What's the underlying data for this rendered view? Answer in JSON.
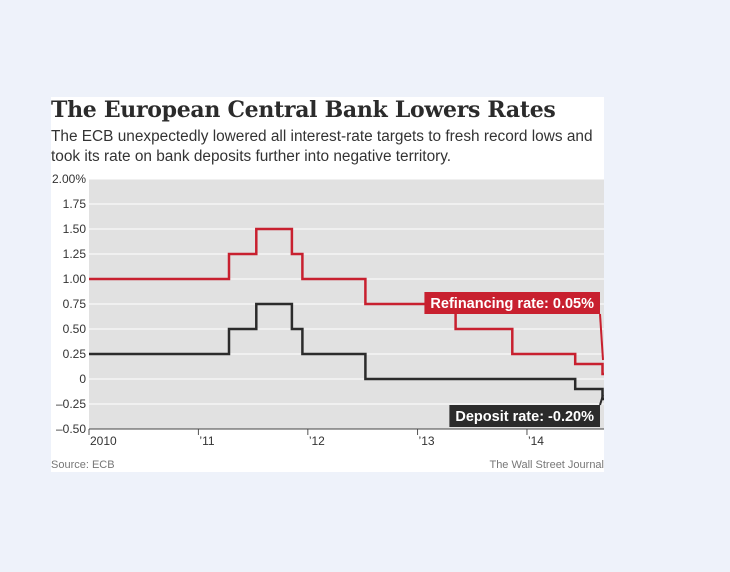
{
  "header": {
    "title": "The European Central Bank Lowers Rates",
    "subtitle": "The ECB unexpectedly lowered all interest-rate targets to fresh record lows and took its rate on bank deposits further into negative territory."
  },
  "footer": {
    "source": "Source: ECB",
    "credit": "The Wall Street Journal"
  },
  "chart_data": {
    "type": "line",
    "step": true,
    "ylim": [
      -0.5,
      2.0
    ],
    "xlim": [
      "2010-01-01",
      "2014-09-15"
    ],
    "y_ticks": [
      2.0,
      1.75,
      1.5,
      1.25,
      1.0,
      0.75,
      0.5,
      0.25,
      0,
      -0.25,
      -0.5
    ],
    "y_tick_labels": [
      "2.00%",
      "1.75",
      "1.50",
      "1.25",
      "1.00",
      "0.75",
      "0.50",
      "0.25",
      "0",
      "–0.25",
      "–0.50"
    ],
    "x_ticks": [
      {
        "label": "2010",
        "date": "2010-01-01"
      },
      {
        "label": "’11",
        "date": "2011-01-01"
      },
      {
        "label": "’12",
        "date": "2012-01-01"
      },
      {
        "label": "’13",
        "date": "2013-01-01"
      },
      {
        "label": "’14",
        "date": "2014-01-01"
      }
    ],
    "grid": true,
    "series": [
      {
        "name": "Refinancing rate",
        "label": "Refinancing rate: 0.05%",
        "color": "#c8202f",
        "points": [
          [
            "2010-01-01",
            1.0
          ],
          [
            "2011-04-13",
            1.25
          ],
          [
            "2011-07-13",
            1.5
          ],
          [
            "2011-11-09",
            1.25
          ],
          [
            "2011-12-14",
            1.0
          ],
          [
            "2012-07-11",
            0.75
          ],
          [
            "2013-05-08",
            0.5
          ],
          [
            "2013-11-13",
            0.25
          ],
          [
            "2014-06-11",
            0.15
          ],
          [
            "2014-09-10",
            0.05
          ],
          [
            "2014-09-15",
            0.05
          ]
        ]
      },
      {
        "name": "Deposit rate",
        "label": "Deposit rate: -0.20%",
        "color": "#2b2b2b",
        "points": [
          [
            "2010-01-01",
            0.25
          ],
          [
            "2011-04-13",
            0.5
          ],
          [
            "2011-07-13",
            0.75
          ],
          [
            "2011-11-09",
            0.5
          ],
          [
            "2011-12-14",
            0.25
          ],
          [
            "2012-07-11",
            0.0
          ],
          [
            "2014-06-11",
            -0.1
          ],
          [
            "2014-09-10",
            -0.2
          ],
          [
            "2014-09-15",
            -0.2
          ]
        ]
      }
    ]
  }
}
